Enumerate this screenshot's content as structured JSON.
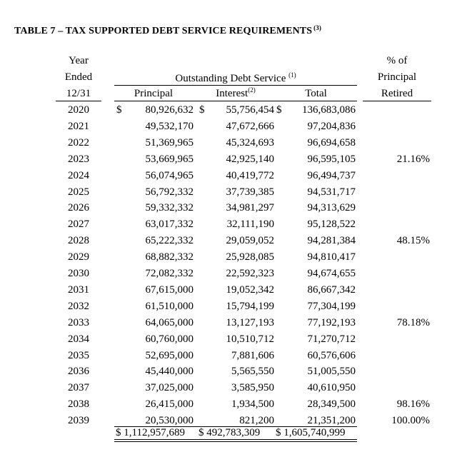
{
  "title": {
    "text": "TABLE 7 – TAX SUPPORTED DEBT SERVICE REQUIREMENTS",
    "footnote": "(3)"
  },
  "headers": {
    "year_line1": "Year",
    "year_line2": "Ended",
    "year_line3": "12/31",
    "group_label": "Outstanding Debt Service",
    "group_footnote": "(1)",
    "principal": "Principal",
    "interest": "Interest",
    "interest_footnote": "(2)",
    "total": "Total",
    "pct_line1": "% of",
    "pct_line2": "Principal",
    "pct_line3": "Retired"
  },
  "currency_symbol": "$",
  "rows": [
    {
      "year": "2020",
      "principal": "80,926,632",
      "interest": "55,756,454",
      "total": "136,683,086",
      "pct": ""
    },
    {
      "year": "2021",
      "principal": "49,532,170",
      "interest": "47,672,666",
      "total": "97,204,836",
      "pct": ""
    },
    {
      "year": "2022",
      "principal": "51,369,965",
      "interest": "45,324,693",
      "total": "96,694,658",
      "pct": ""
    },
    {
      "year": "2023",
      "principal": "53,669,965",
      "interest": "42,925,140",
      "total": "96,595,105",
      "pct": "21.16%"
    },
    {
      "year": "2024",
      "principal": "56,074,965",
      "interest": "40,419,772",
      "total": "96,494,737",
      "pct": ""
    },
    {
      "year": "2025",
      "principal": "56,792,332",
      "interest": "37,739,385",
      "total": "94,531,717",
      "pct": ""
    },
    {
      "year": "2026",
      "principal": "59,332,332",
      "interest": "34,981,297",
      "total": "94,313,629",
      "pct": ""
    },
    {
      "year": "2027",
      "principal": "63,017,332",
      "interest": "32,111,190",
      "total": "95,128,522",
      "pct": ""
    },
    {
      "year": "2028",
      "principal": "65,222,332",
      "interest": "29,059,052",
      "total": "94,281,384",
      "pct": "48.15%"
    },
    {
      "year": "2029",
      "principal": "68,882,332",
      "interest": "25,928,085",
      "total": "94,810,417",
      "pct": ""
    },
    {
      "year": "2030",
      "principal": "72,082,332",
      "interest": "22,592,323",
      "total": "94,674,655",
      "pct": ""
    },
    {
      "year": "2031",
      "principal": "67,615,000",
      "interest": "19,052,342",
      "total": "86,667,342",
      "pct": ""
    },
    {
      "year": "2032",
      "principal": "61,510,000",
      "interest": "15,794,199",
      "total": "77,304,199",
      "pct": ""
    },
    {
      "year": "2033",
      "principal": "64,065,000",
      "interest": "13,127,193",
      "total": "77,192,193",
      "pct": "78.18%"
    },
    {
      "year": "2034",
      "principal": "60,760,000",
      "interest": "10,510,712",
      "total": "71,270,712",
      "pct": ""
    },
    {
      "year": "2035",
      "principal": "52,695,000",
      "interest": "7,881,606",
      "total": "60,576,606",
      "pct": ""
    },
    {
      "year": "2036",
      "principal": "45,440,000",
      "interest": "5,565,550",
      "total": "51,005,550",
      "pct": ""
    },
    {
      "year": "2037",
      "principal": "37,025,000",
      "interest": "3,585,950",
      "total": "40,610,950",
      "pct": ""
    },
    {
      "year": "2038",
      "principal": "26,415,000",
      "interest": "1,934,500",
      "total": "28,349,500",
      "pct": "98.16%"
    },
    {
      "year": "2039",
      "principal": "20,530,000",
      "interest": "821,200",
      "total": "21,351,200",
      "pct": "100.00%"
    }
  ],
  "totals": {
    "principal": "$ 1,112,957,689",
    "interest": "$ 492,783,309",
    "total": "$ 1,605,740,999"
  }
}
